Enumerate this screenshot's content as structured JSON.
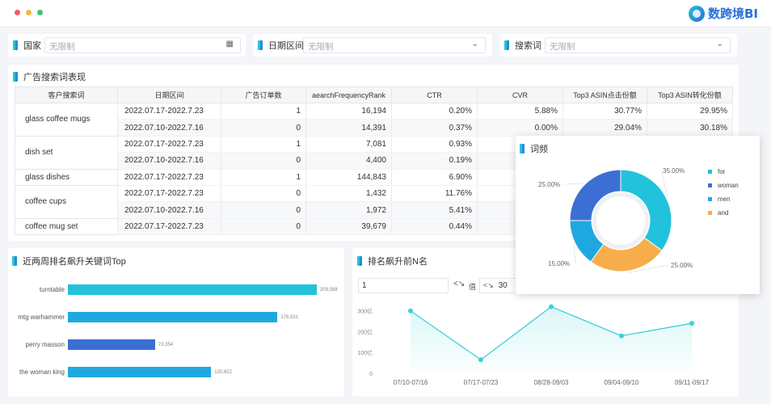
{
  "window": {
    "dot_colors": [
      "#f25d5d",
      "#f7b73a",
      "#3bc86a"
    ]
  },
  "logo": {
    "text": "数跨境BI"
  },
  "filters": [
    {
      "label": "国家",
      "placeholder": "无限制",
      "icon": "calendar-icon"
    },
    {
      "label": "日期区间",
      "placeholder": "无限制",
      "icon": "chevron-down-icon"
    },
    {
      "label": "搜索词",
      "placeholder": "无限制",
      "icon": "chevron-down-icon"
    }
  ],
  "table": {
    "title": "广告搜索词表现",
    "columns": [
      "客户搜索词",
      "日期区间",
      "广告订单数",
      "aearchFrequencyRank",
      "CTR",
      "CVR",
      "Top3 ASIN点击份额",
      "Top3 ASIN转化份额"
    ],
    "rows": [
      {
        "keyword": "glass coffee mugs",
        "date": "2022.07.17-2022.7.23",
        "orders": "1",
        "rank": "16,194",
        "ctr": "0.20%",
        "cvr": "5.88%",
        "click": "30.77%",
        "conv": "29.95%"
      },
      {
        "keyword": "",
        "date": "2022.07.10-2022.7.16",
        "orders": "0",
        "rank": "14,391",
        "ctr": "0.37%",
        "cvr": "0.00%",
        "click": "29.04%",
        "conv": "30.18%"
      },
      {
        "keyword": "dish set",
        "date": "2022.07.17-2022.7.23",
        "orders": "1",
        "rank": "7,081",
        "ctr": "0.93%",
        "cvr": "",
        "click": "",
        "conv": ""
      },
      {
        "keyword": "",
        "date": "2022.07.10-2022.7.16",
        "orders": "0",
        "rank": "4,400",
        "ctr": "0.19%",
        "cvr": "",
        "click": "",
        "conv": ""
      },
      {
        "keyword": "glass dishes",
        "date": "2022.07.17-2022.7.23",
        "orders": "1",
        "rank": "144,843",
        "ctr": "6.90%",
        "cvr": "",
        "click": "",
        "conv": ""
      },
      {
        "keyword": "coffee cups",
        "date": "2022.07.17-2022.7.23",
        "orders": "0",
        "rank": "1,432",
        "ctr": "11.76%",
        "cvr": "",
        "click": "",
        "conv": ""
      },
      {
        "keyword": "",
        "date": "2022.07.10-2022.7.16",
        "orders": "0",
        "rank": "1,972",
        "ctr": "5.41%",
        "cvr": "",
        "click": "",
        "conv": ""
      },
      {
        "keyword": "coffee mug set",
        "date": "2022.07.17-2022.7.23",
        "orders": "0",
        "rank": "39,679",
        "ctr": "0.44%",
        "cvr": "",
        "click": "",
        "conv": ""
      }
    ]
  },
  "bar_panel": {
    "title": "近两周排名飙升关键词Top"
  },
  "line_panel": {
    "title": "排名飙升前N名",
    "from_value": "1",
    "op_label": "值",
    "to_value": "30"
  },
  "popup": {
    "title": "词频"
  },
  "chart_data": [
    {
      "type": "bar",
      "orientation": "horizontal",
      "categories": [
        "turntable",
        "mtg warhammer",
        "perry masson",
        "the woman king"
      ],
      "values": [
        209588,
        176531,
        73354,
        120652
      ],
      "value_labels": [
        "209,588",
        "176,531",
        "73,354",
        "120,652"
      ],
      "colors": [
        "#22c2dc",
        "#1fa8e0",
        "#3b6fd4",
        "#1fa8e0"
      ],
      "xlim": [
        0,
        230000
      ]
    },
    {
      "type": "line",
      "x": [
        "07/10-07/16",
        "07/17-07/23",
        "08/28-09/03",
        "09/04-09/10",
        "09/11-09/17"
      ],
      "values": [
        300,
        65,
        320,
        180,
        240
      ],
      "ytick_labels": [
        "0",
        "100亿",
        "200亿",
        "300亿"
      ],
      "ylim": [
        0,
        330
      ],
      "color": "#3ccfd8"
    },
    {
      "type": "pie",
      "labels": [
        "for",
        "woman",
        "men",
        "and"
      ],
      "values": [
        35,
        25,
        15,
        25
      ],
      "value_labels": [
        "35.00%",
        "25.00%",
        "15.00%",
        "25.00%"
      ],
      "colors": [
        "#22c2dc",
        "#3b6fd4",
        "#1fa8e0",
        "#f7ae4a"
      ]
    }
  ]
}
